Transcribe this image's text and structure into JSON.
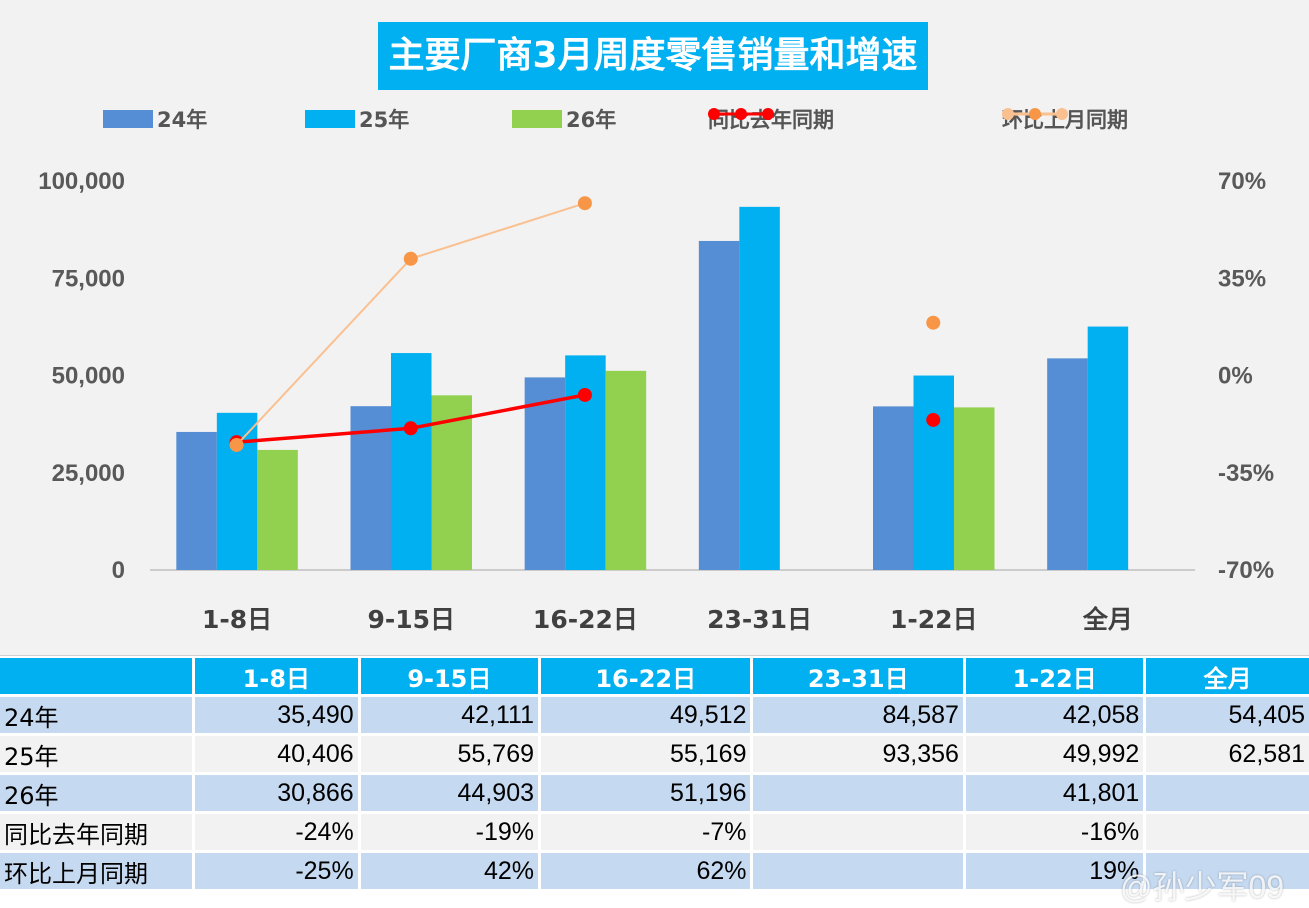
{
  "chart_data": {
    "type": "bar",
    "title": "主要厂商3月周度零售销量和增速",
    "categories": [
      "1-8日",
      "9-15日",
      "16-22日",
      "23-31日",
      "1-22日",
      "全月"
    ],
    "series": [
      {
        "name": "24年",
        "kind": "bar",
        "color": "#558ed5",
        "values": [
          35490,
          42111,
          49512,
          84587,
          42058,
          54405
        ]
      },
      {
        "name": "25年",
        "kind": "bar",
        "color": "#00b0f0",
        "values": [
          40406,
          55769,
          55169,
          93356,
          49992,
          62581
        ]
      },
      {
        "name": "26年",
        "kind": "bar",
        "color": "#92d050",
        "values": [
          30866,
          44903,
          51196,
          null,
          41801,
          null
        ]
      },
      {
        "name": "同比去年同期",
        "kind": "line",
        "axis": "right",
        "color": "#ff0000",
        "values": [
          -24,
          -19,
          -7,
          null,
          -16,
          null
        ]
      },
      {
        "name": "环比上月同期",
        "kind": "line",
        "axis": "right",
        "color": "#f79646",
        "line_color": "#fac090",
        "values": [
          -25,
          42,
          62,
          null,
          19,
          null
        ]
      }
    ],
    "y_left": {
      "ylim": [
        0,
        100000
      ],
      "ticks": [
        "0",
        "25,000",
        "50,000",
        "75,000",
        "100,000"
      ]
    },
    "y_right": {
      "ylim": [
        -70,
        70
      ],
      "ticks": [
        "-70%",
        "-35%",
        "0%",
        "35%",
        "70%"
      ]
    },
    "legend_position": "top",
    "grid": false
  },
  "table": {
    "headers": [
      "",
      "1-8日",
      "9-15日",
      "16-22日",
      "23-31日",
      "1-22日",
      "全月"
    ],
    "rows": [
      [
        "24年",
        "35,490",
        "42,111",
        "49,512",
        "84,587",
        "42,058",
        "54,405"
      ],
      [
        "25年",
        "40,406",
        "55,769",
        "55,169",
        "93,356",
        "49,992",
        "62,581"
      ],
      [
        "26年",
        "30,866",
        "44,903",
        "51,196",
        "",
        "41,801",
        ""
      ],
      [
        "同比去年同期",
        "-24%",
        "-19%",
        "-7%",
        "",
        "-16%",
        ""
      ],
      [
        "环比上月同期",
        "-25%",
        "42%",
        "62%",
        "",
        "19%",
        ""
      ]
    ]
  },
  "watermark": "@孙少军09"
}
